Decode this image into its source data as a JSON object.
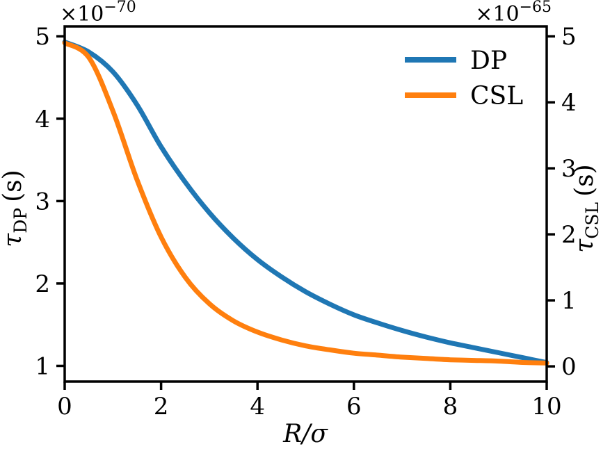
{
  "styles": {
    "background": "#ffffff",
    "axis_color": "#000000",
    "line_width": 7
  },
  "chart_data": {
    "type": "line",
    "title": "",
    "xlabel": "R/σ",
    "xlim": [
      0,
      10
    ],
    "x_ticks": [
      0,
      2,
      4,
      6,
      8,
      10
    ],
    "grid": false,
    "legend": {
      "position": "upper right"
    },
    "left_axis": {
      "symbol": "τ",
      "sub": "DP",
      "unit": "(s)",
      "offset_base": "×10",
      "offset_exp": "−70",
      "ticks": [
        1,
        2,
        3,
        4,
        5
      ],
      "lim": [
        0.81,
        5.12
      ]
    },
    "right_axis": {
      "symbol": "τ",
      "sub": "CSL",
      "unit": "(s)",
      "offset_base": "×10",
      "offset_exp": "−65",
      "ticks": [
        0,
        1,
        2,
        3,
        4,
        5
      ],
      "lim": [
        -0.23,
        5.15
      ]
    },
    "x": [
      0,
      0.5,
      1,
      1.5,
      2,
      2.5,
      3,
      3.5,
      4,
      4.5,
      5,
      5.5,
      6,
      6.5,
      7,
      7.5,
      8,
      8.5,
      9,
      9.5,
      10
    ],
    "series": [
      {
        "name": "DP",
        "axis": "left",
        "color": "#1f77b4",
        "values": [
          4.93,
          4.81,
          4.57,
          4.17,
          3.66,
          3.23,
          2.86,
          2.55,
          2.29,
          2.08,
          1.9,
          1.75,
          1.62,
          1.52,
          1.43,
          1.35,
          1.28,
          1.22,
          1.16,
          1.1,
          1.04
        ]
      },
      {
        "name": "CSL",
        "axis": "right",
        "color": "#ff7f0e",
        "values": [
          4.9,
          4.68,
          3.87,
          2.83,
          1.96,
          1.35,
          0.95,
          0.69,
          0.52,
          0.4,
          0.31,
          0.25,
          0.2,
          0.17,
          0.14,
          0.12,
          0.1,
          0.09,
          0.08,
          0.06,
          0.05
        ]
      }
    ]
  }
}
